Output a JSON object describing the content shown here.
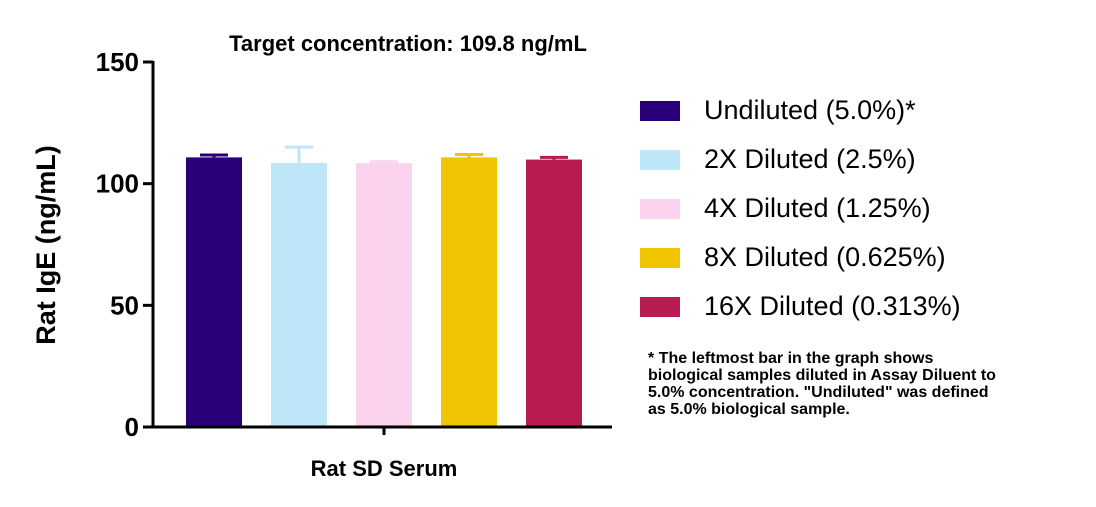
{
  "chart_data": {
    "type": "bar",
    "title": "Target concentration: 109.8 ng/mL",
    "xlabel": "Rat SD Serum",
    "ylabel": "Rat IgE (ng/mL)",
    "ylim": [
      0,
      150
    ],
    "yticks": [
      0,
      50,
      100,
      150
    ],
    "ytick_labels": [
      "0",
      "50",
      "100",
      "150"
    ],
    "grid": false,
    "legend_position": "right",
    "series": [
      {
        "name": "Undiluted (5.0%)*",
        "value": 110.8,
        "error": 1.0,
        "color": "#2a007a"
      },
      {
        "name": "2X Diluted (2.5%)",
        "value": 108.5,
        "error": 6.5,
        "color": "#bde6f8"
      },
      {
        "name": "4X Diluted (1.25%)",
        "value": 108.4,
        "error": 0.6,
        "color": "#fbd3ee"
      },
      {
        "name": "8X Diluted (0.625%)",
        "value": 110.8,
        "error": 1.2,
        "color": "#f1c400"
      },
      {
        "name": "16X Diluted (0.313%)",
        "value": 109.9,
        "error": 0.9,
        "color": "#b81b52"
      }
    ]
  },
  "footnote": {
    "lines": [
      "* The leftmost bar in the graph shows",
      "biological samples diluted in Assay Diluent to",
      "5.0% concentration. \"Undiluted\" was defined",
      "as 5.0% biological sample."
    ]
  }
}
